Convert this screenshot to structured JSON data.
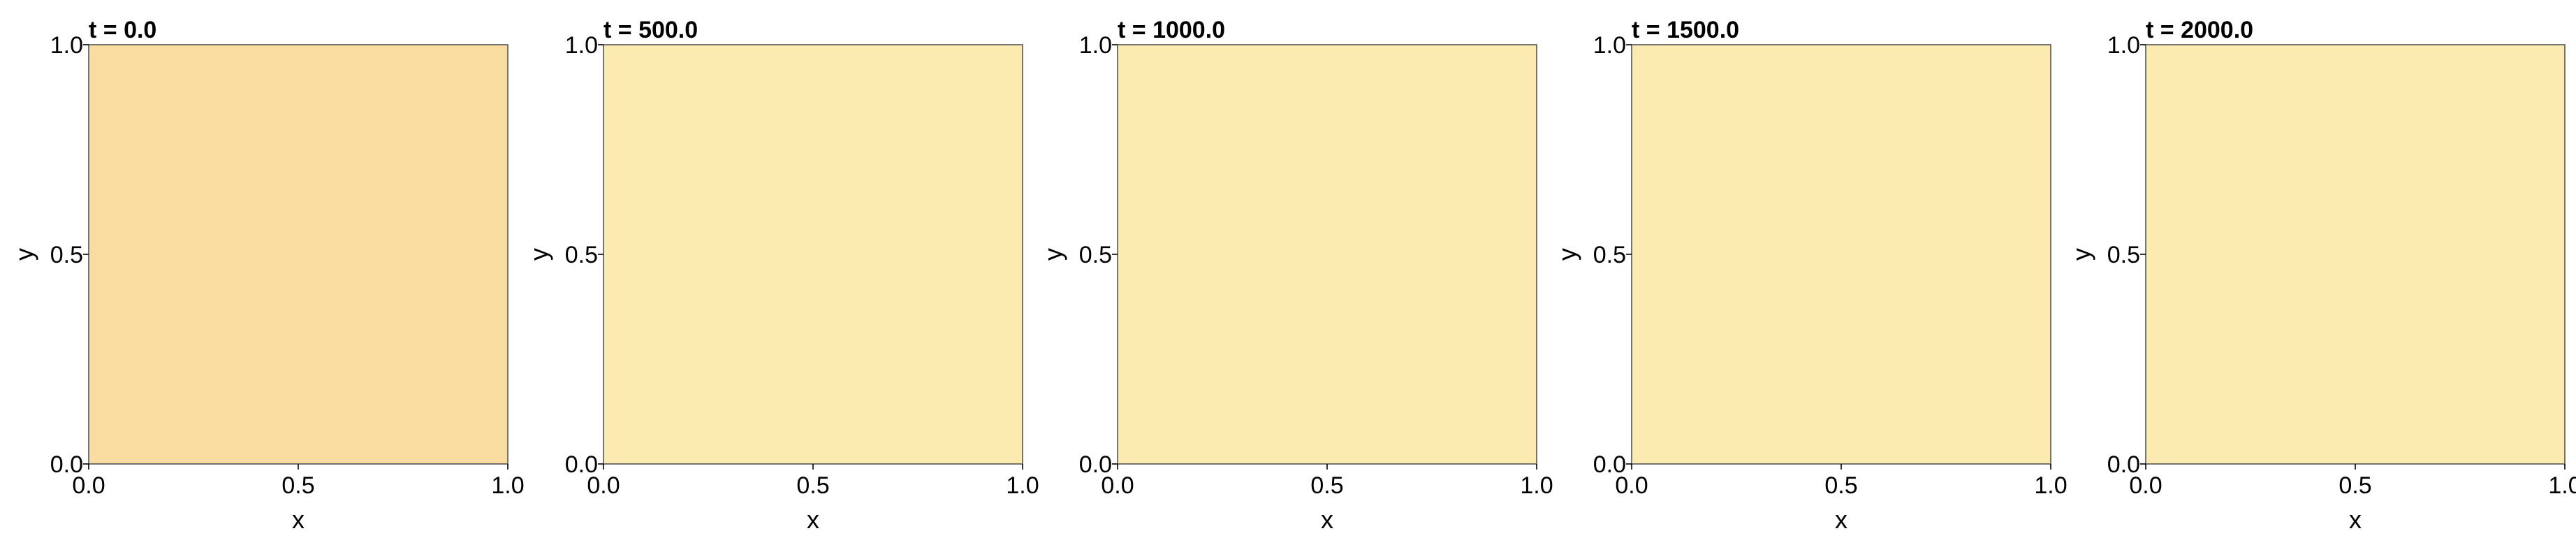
{
  "chart_data": [
    {
      "type": "heatmap",
      "title": "t = 0.0",
      "xlabel": "x",
      "ylabel": "y",
      "xlim": [
        0.0,
        1.0
      ],
      "ylim": [
        0.0,
        1.0
      ],
      "xticks": [
        "0.0",
        "0.5",
        "1.0"
      ],
      "yticks": [
        "0.0",
        "0.5",
        "1.0"
      ],
      "fill_color": "#f8dca0",
      "grid": false
    },
    {
      "type": "heatmap",
      "title": "t = 500.0",
      "xlabel": "x",
      "ylabel": "y",
      "xlim": [
        0.0,
        1.0
      ],
      "ylim": [
        0.0,
        1.0
      ],
      "xticks": [
        "0.0",
        "0.5",
        "1.0"
      ],
      "yticks": [
        "0.0",
        "0.5",
        "1.0"
      ],
      "fill_color": "#fcebb0",
      "grid": false
    },
    {
      "type": "heatmap",
      "title": "t = 1000.0",
      "xlabel": "x",
      "ylabel": "y",
      "xlim": [
        0.0,
        1.0
      ],
      "ylim": [
        0.0,
        1.0
      ],
      "xticks": [
        "0.0",
        "0.5",
        "1.0"
      ],
      "yticks": [
        "0.0",
        "0.5",
        "1.0"
      ],
      "fill_color": "#fcebb0",
      "grid": false
    },
    {
      "type": "heatmap",
      "title": "t = 1500.0",
      "xlabel": "x",
      "ylabel": "y",
      "xlim": [
        0.0,
        1.0
      ],
      "ylim": [
        0.0,
        1.0
      ],
      "xticks": [
        "0.0",
        "0.5",
        "1.0"
      ],
      "yticks": [
        "0.0",
        "0.5",
        "1.0"
      ],
      "fill_color": "#fcebb0",
      "grid": false
    },
    {
      "type": "heatmap",
      "title": "t = 2000.0",
      "xlabel": "x",
      "ylabel": "y",
      "xlim": [
        0.0,
        1.0
      ],
      "ylim": [
        0.0,
        1.0
      ],
      "xticks": [
        "0.0",
        "0.5",
        "1.0"
      ],
      "yticks": [
        "0.0",
        "0.5",
        "1.0"
      ],
      "fill_color": "#fcebb0",
      "grid": false
    }
  ]
}
